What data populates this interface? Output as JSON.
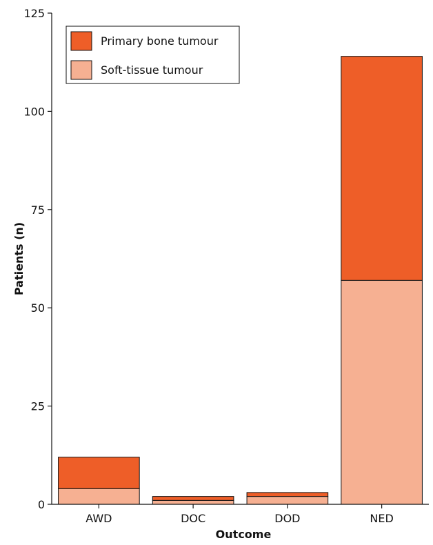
{
  "chart_data": {
    "type": "bar",
    "stacked": true,
    "categories": [
      "AWD",
      "DOC",
      "DOD",
      "NED"
    ],
    "series": [
      {
        "name": "Soft-tissue tumour",
        "values": [
          4,
          1,
          2,
          57
        ],
        "color": "#F6B092"
      },
      {
        "name": "Primary bone tumour",
        "values": [
          8,
          1,
          1,
          57
        ],
        "color": "#EE5E28"
      }
    ],
    "xlabel": "Outcome",
    "ylabel": "Patients (n)",
    "ylim": [
      0,
      125
    ],
    "yticks": [
      0,
      25,
      50,
      75,
      100,
      125
    ],
    "yticks_labels": [
      "0",
      "25",
      "50",
      "75",
      "100",
      "125"
    ],
    "grid": false,
    "legend": {
      "position": "top-left",
      "entries": [
        "Primary bone tumour",
        "Soft-tissue tumour"
      ]
    }
  }
}
